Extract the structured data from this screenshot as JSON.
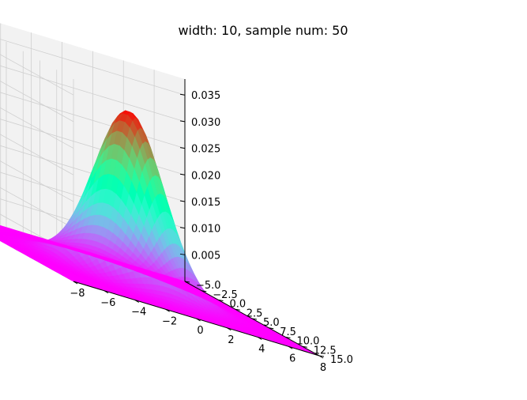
{
  "chart_data": {
    "type": "surface",
    "title": "width: 10, sample num: 50",
    "xlabel": "",
    "ylabel": "",
    "zlabel": "",
    "xlim": [
      -8,
      8
    ],
    "ylim": [
      -5,
      15
    ],
    "zlim": [
      0.0,
      0.038
    ],
    "x_ticks": [
      -8,
      -6,
      -4,
      -2,
      0,
      2,
      4,
      6,
      8
    ],
    "x_tick_labels": [
      "−8",
      "−6",
      "−4",
      "−2",
      "0",
      "2",
      "4",
      "6",
      "8"
    ],
    "y_ticks": [
      -5.0,
      -2.5,
      0.0,
      2.5,
      5.0,
      7.5,
      10.0,
      12.5,
      15.0
    ],
    "y_tick_labels": [
      "−5.0",
      "−2.5",
      "0.0",
      "2.5",
      "5.0",
      "7.5",
      "10.0",
      "12.5",
      "15.0"
    ],
    "z_ticks": [
      0.005,
      0.01,
      0.015,
      0.02,
      0.025,
      0.03,
      0.035
    ],
    "z_tick_labels": [
      "0.005",
      "0.010",
      "0.015",
      "0.020",
      "0.025",
      "0.030",
      "0.035"
    ],
    "surface": {
      "function": "2d gaussian",
      "peak_location": [
        0,
        5
      ],
      "peak_value": 0.032,
      "std": [
        2,
        2.5
      ],
      "samples": 50,
      "colormap": "rainbow"
    },
    "grid": true
  }
}
